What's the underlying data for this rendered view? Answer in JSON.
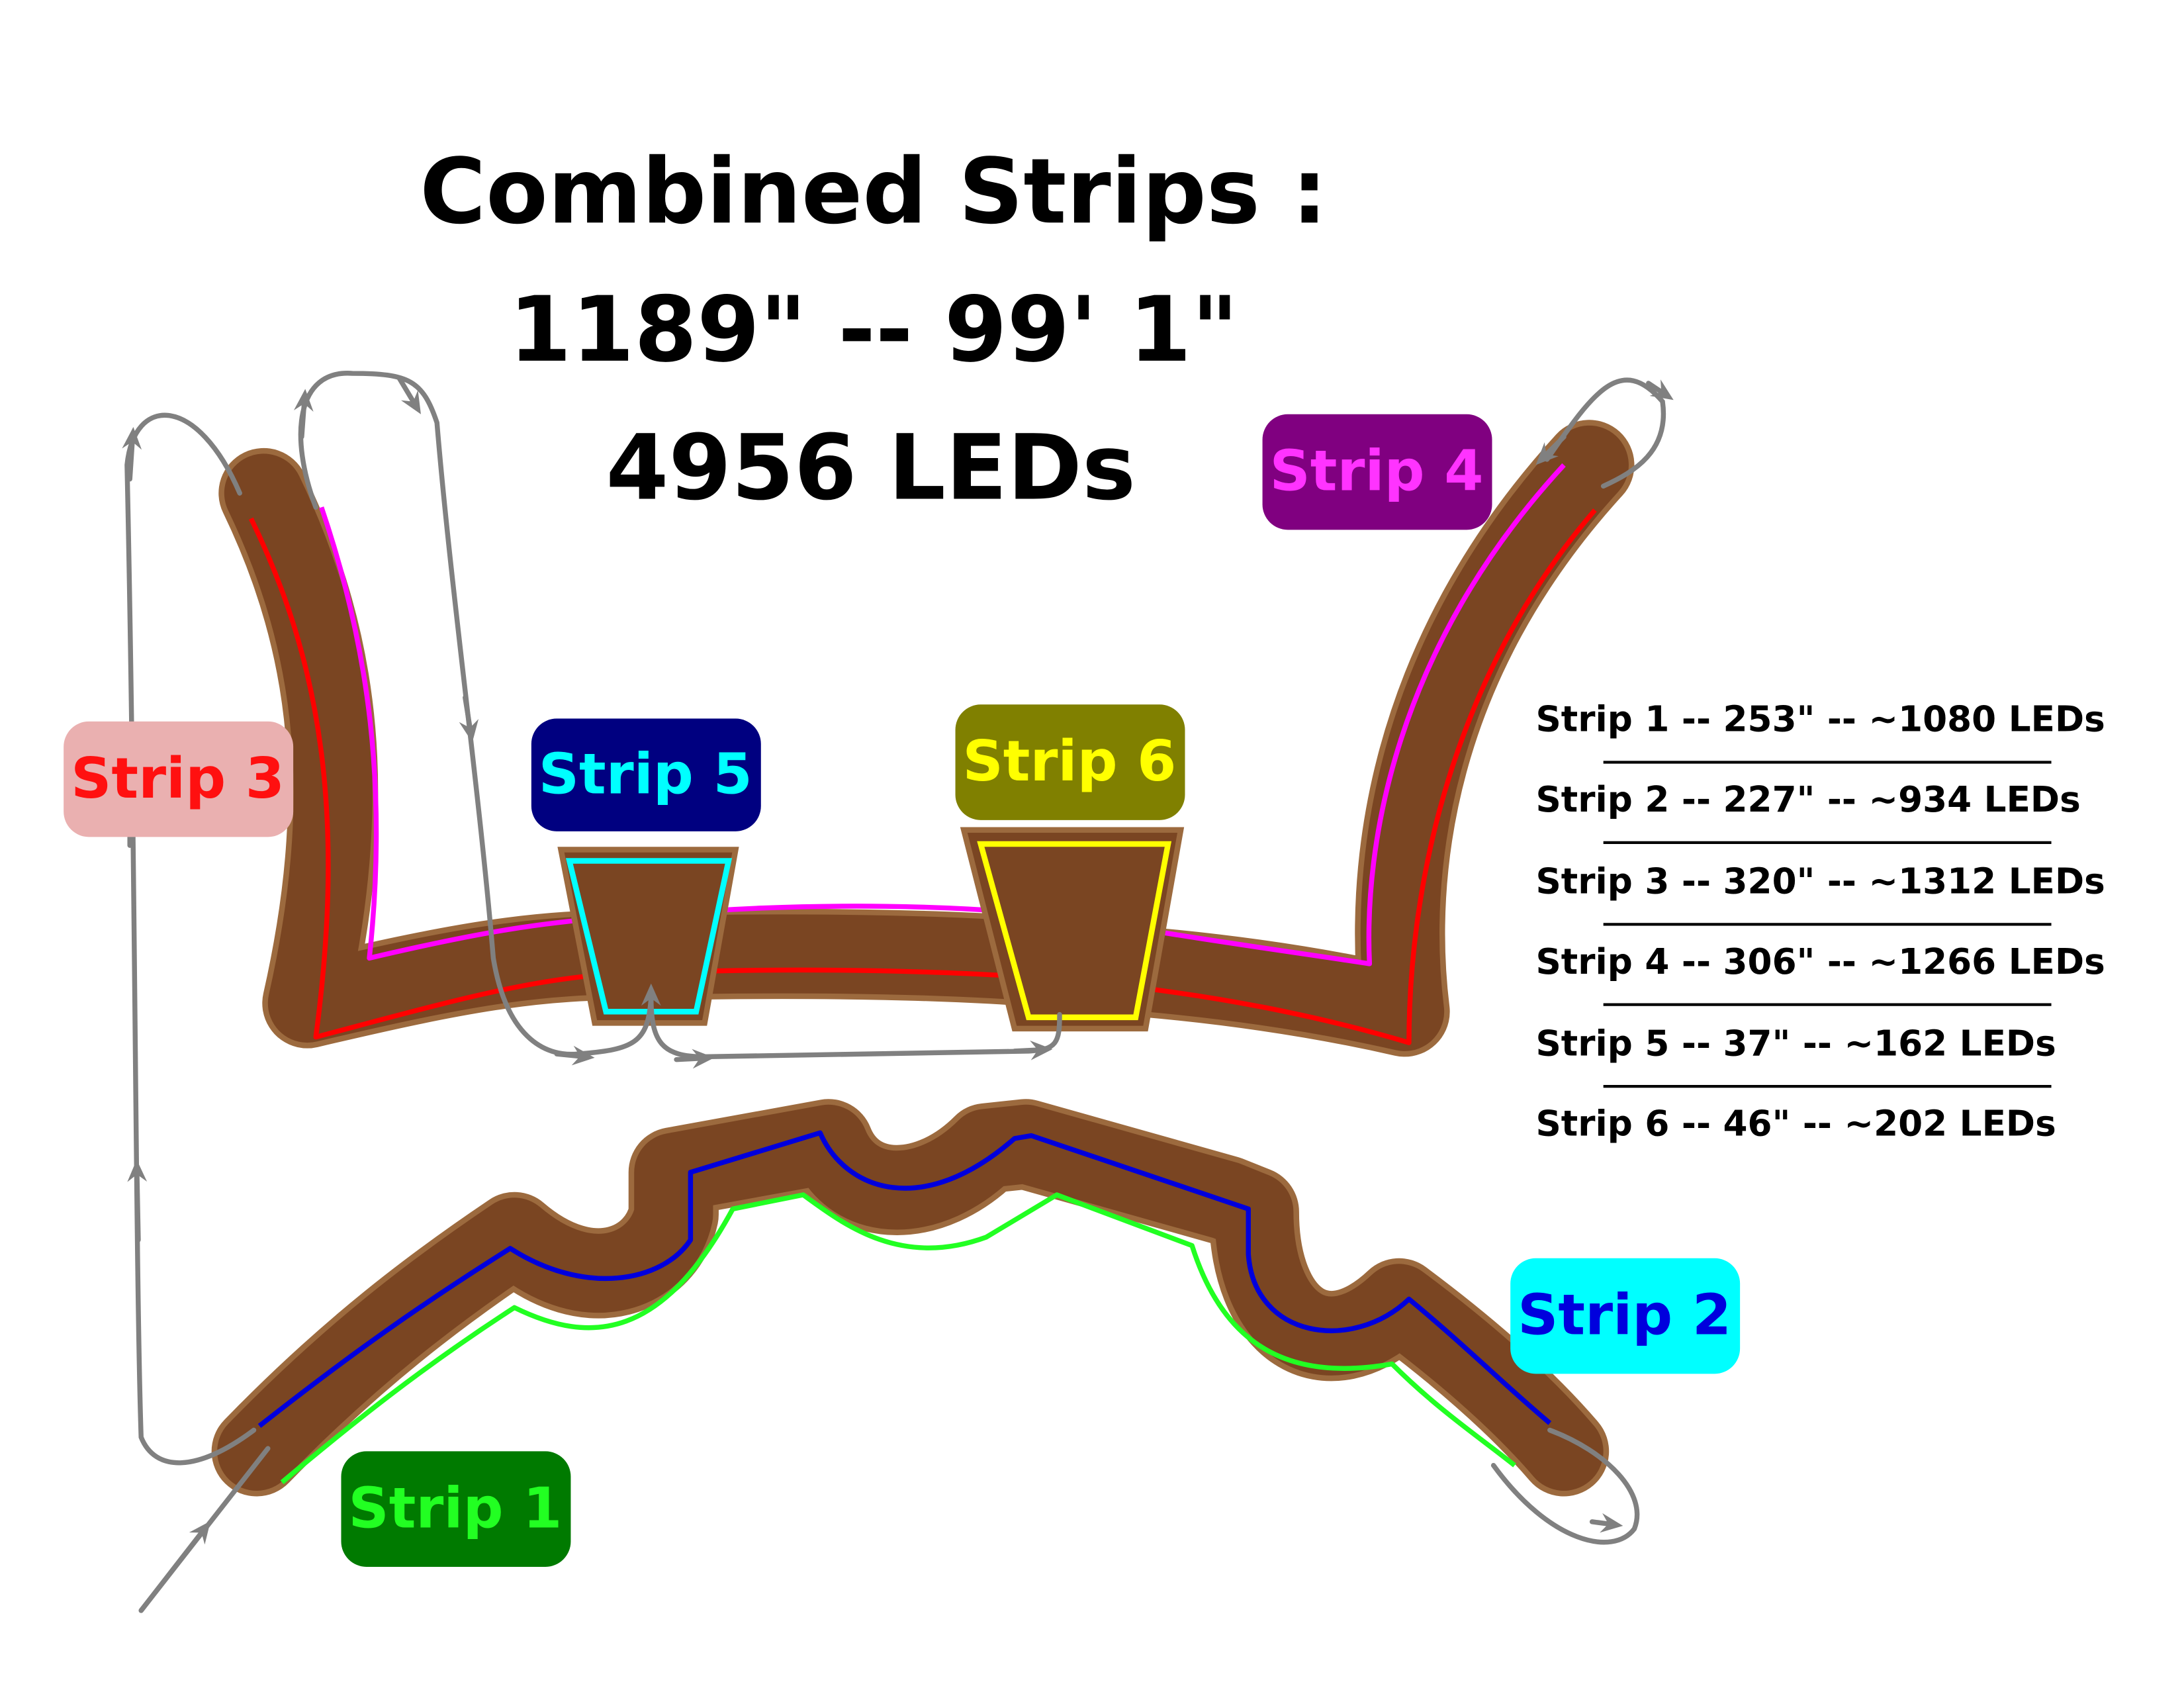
{
  "title": {
    "line1": "Combined Strips :",
    "line2": "1189\"  --  99' 1\"",
    "line3": "4956 LEDs"
  },
  "labels": [
    {
      "id": "strip1",
      "text": "Strip 1",
      "bg": "#007a00",
      "fg": "#22ff22"
    },
    {
      "id": "strip2",
      "text": "Strip 2",
      "bg": "#00ffff",
      "fg": "#0000dd"
    },
    {
      "id": "strip3",
      "text": "Strip 3",
      "bg": "#eab0b0",
      "fg": "#ff1010"
    },
    {
      "id": "strip4",
      "text": "Strip 4",
      "bg": "#800080",
      "fg": "#ff33ff"
    },
    {
      "id": "strip5",
      "text": "Strip 5",
      "bg": "#000080",
      "fg": "#00ffff"
    },
    {
      "id": "strip6",
      "text": "Strip 6",
      "bg": "#808000",
      "fg": "#ffff00"
    }
  ],
  "specs": [
    "Strip 1  --  253\"  --  ~1080 LEDs",
    "Strip 2  --  227\"  --  ~934 LEDs",
    "Strip 3  --  320\"  --  ~1312 LEDs",
    "Strip 4  --  306\"  --  ~1266 LEDs",
    "Strip 5  --  37\"  --  ~162 LEDs",
    "Strip 6  --  46\"  --  ~202 LEDs"
  ],
  "colors": {
    "body": "#7a4522",
    "outline": "#9c6a3e",
    "strip1": "#22ff22",
    "strip2": "#0000dd",
    "strip3": "#ff0000",
    "strip4": "#ff00ff",
    "strip5": "#00ffff",
    "strip6": "#ffff00",
    "wire": "#808080"
  }
}
